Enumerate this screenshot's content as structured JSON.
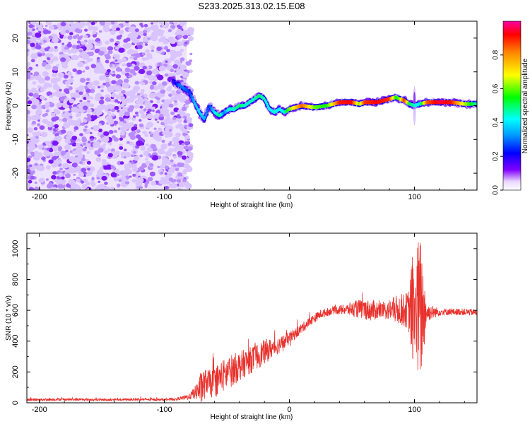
{
  "title": "S233.2025.313.02.15.E08",
  "chart_data": [
    {
      "type": "heatmap",
      "name": "spectrogram",
      "xlabel": "Height of straight line (km)",
      "ylabel": "Frequency (Hz)",
      "xlim": [
        -210,
        150
      ],
      "ylim": [
        -25,
        25
      ],
      "xticks": [
        -200,
        -100,
        0,
        100
      ],
      "xtick_labels": [
        "-200",
        "-100",
        "0",
        "100"
      ],
      "yticks": [
        -20,
        -10,
        0,
        10,
        20
      ],
      "ytick_labels": [
        "-20",
        "-10",
        "0",
        "10",
        "20"
      ],
      "noise_region_x": [
        -210,
        -82
      ],
      "ridge": {
        "x": [
          -93,
          -88,
          -84,
          -80,
          -76,
          -72,
          -68,
          -64,
          -60,
          -56,
          -52,
          -48,
          -44,
          -40,
          -36,
          -32,
          -28,
          -24,
          -20,
          -16,
          -12,
          -8,
          -4,
          0,
          10,
          20,
          30,
          40,
          50,
          56,
          60,
          70,
          80,
          85,
          88,
          92,
          96,
          100,
          104,
          110,
          120,
          130,
          140,
          150
        ],
        "freq": [
          7,
          6,
          5,
          4,
          1,
          -2,
          -4,
          0,
          -2,
          -3,
          -2,
          -1,
          -1,
          0,
          0,
          1,
          2,
          3,
          2,
          -1,
          -2,
          -1,
          -2,
          -1,
          0,
          -0.5,
          0,
          1,
          1,
          0.5,
          1,
          1,
          2,
          2.5,
          2,
          1.5,
          0.5,
          0,
          0.5,
          1,
          1,
          1,
          0.5,
          0.5
        ],
        "amp": [
          0.15,
          0.3,
          0.3,
          0.25,
          0.35,
          0.4,
          0.35,
          0.25,
          0.4,
          0.5,
          0.3,
          0.45,
          0.45,
          0.5,
          0.45,
          0.45,
          0.45,
          0.5,
          0.45,
          0.4,
          0.45,
          0.4,
          0.45,
          0.6,
          0.85,
          0.6,
          0.55,
          0.9,
          0.92,
          0.6,
          0.88,
          0.92,
          0.88,
          0.55,
          0.6,
          0.9,
          0.5,
          0.45,
          0.4,
          0.85,
          0.95,
          0.9,
          0.65,
          0.45
        ]
      },
      "colorbar": {
        "label": "Normalized spectral amplitude",
        "ticks": [
          0.0,
          0.2,
          0.4,
          0.6,
          0.8
        ],
        "tick_labels": [
          "0.0",
          "0.2",
          "0.4",
          "0.6",
          "0.8"
        ],
        "range": [
          0,
          1
        ]
      }
    },
    {
      "type": "line",
      "name": "snr",
      "xlabel": "Height of straight line (km)",
      "ylabel": "SNR (10 * v/v)",
      "xlim": [
        -210,
        150
      ],
      "ylim": [
        0,
        1100
      ],
      "xticks": [
        -200,
        -100,
        0,
        100
      ],
      "xtick_labels": [
        "-200",
        "-100",
        "0",
        "100"
      ],
      "yticks": [
        0,
        200,
        400,
        600,
        800,
        1000
      ],
      "ytick_labels": [
        "0",
        "200",
        "400",
        "600",
        "800",
        "1000"
      ],
      "series": [
        {
          "name": "SNR",
          "color": "#e8322d",
          "x": [
            -210,
            -180,
            -150,
            -120,
            -100,
            -90,
            -80,
            -75,
            -70,
            -66,
            -62,
            -58,
            -50,
            -42,
            -35,
            -28,
            -20,
            -12,
            -5,
            0,
            5,
            15,
            25,
            35,
            45,
            55,
            65,
            75,
            85,
            95,
            100,
            105,
            110,
            120,
            130,
            140,
            150
          ],
          "mean": [
            20,
            22,
            20,
            22,
            20,
            24,
            40,
            70,
            100,
            140,
            120,
            150,
            190,
            230,
            260,
            290,
            330,
            360,
            390,
            420,
            450,
            520,
            575,
            600,
            605,
            610,
            600,
            600,
            605,
            600,
            600,
            600,
            585,
            590,
            590,
            590,
            585
          ],
          "noise": [
            8,
            8,
            8,
            8,
            8,
            8,
            20,
            45,
            120,
            80,
            90,
            100,
            110,
            100,
            90,
            85,
            80,
            60,
            50,
            40,
            35,
            30,
            28,
            25,
            35,
            60,
            70,
            55,
            90,
            120,
            450,
            480,
            60,
            25,
            22,
            22,
            22
          ]
        }
      ]
    }
  ]
}
